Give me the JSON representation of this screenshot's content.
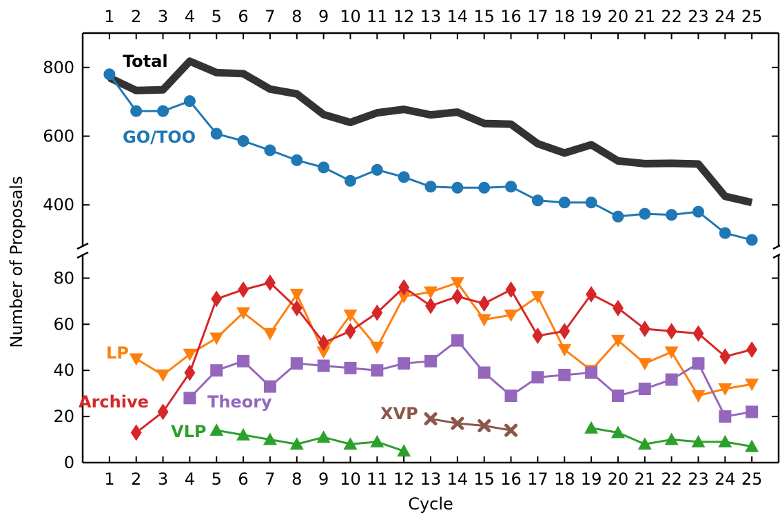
{
  "chart_data": {
    "type": "line",
    "xlabel": "Cycle",
    "ylabel": "Number of Proposals",
    "x": [
      1,
      2,
      3,
      4,
      5,
      6,
      7,
      8,
      9,
      10,
      11,
      12,
      13,
      14,
      15,
      16,
      17,
      18,
      19,
      20,
      21,
      22,
      23,
      24,
      25
    ],
    "x_ticks": [
      "1",
      "2",
      "3",
      "4",
      "5",
      "6",
      "7",
      "8",
      "9",
      "10",
      "11",
      "12",
      "13",
      "14",
      "15",
      "16",
      "17",
      "18",
      "19",
      "20",
      "21",
      "22",
      "23",
      "24",
      "25"
    ],
    "xlim": [
      0.0,
      26.0
    ],
    "broken_y_axis": true,
    "upper_panel": {
      "ylim": [
        280,
        900
      ],
      "yticks": [
        400,
        600,
        800
      ]
    },
    "lower_panel": {
      "ylim": [
        0,
        90
      ],
      "yticks": [
        0,
        20,
        40,
        60,
        80
      ]
    },
    "series": [
      {
        "name": "Total",
        "panel": "upper",
        "color": "#333333",
        "marker": "none",
        "values": [
          770,
          733,
          735,
          818,
          785,
          782,
          737,
          723,
          663,
          640,
          668,
          678,
          662,
          670,
          637,
          635,
          578,
          551,
          575,
          528,
          520,
          521,
          519,
          425,
          407
        ]
      },
      {
        "name": "GO/TOO",
        "panel": "upper",
        "color": "#1f77b4",
        "marker": "circle",
        "values": [
          780,
          673,
          673,
          702,
          607,
          586,
          559,
          530,
          509,
          470,
          502,
          481,
          453,
          450,
          450,
          453,
          413,
          407,
          407,
          366,
          374,
          371,
          380,
          318,
          298
        ]
      },
      {
        "name": "LP",
        "panel": "lower",
        "color": "#ff7f0e",
        "marker": "triangle-down",
        "values": [
          null,
          45,
          38,
          47,
          54,
          65,
          56,
          73,
          48,
          64,
          50,
          72,
          74,
          78,
          62,
          64,
          72,
          49,
          40,
          53,
          43,
          48,
          29,
          32,
          34
        ]
      },
      {
        "name": "Archive",
        "panel": "lower",
        "color": "#d62728",
        "marker": "diamond",
        "values": [
          null,
          13,
          22,
          39,
          71,
          75,
          78,
          67,
          52,
          57,
          65,
          76,
          68,
          72,
          69,
          75,
          55,
          57,
          73,
          67,
          58,
          57,
          56,
          46,
          49
        ]
      },
      {
        "name": "Theory",
        "panel": "lower",
        "color": "#9467bd",
        "marker": "square",
        "values": [
          null,
          null,
          null,
          28,
          40,
          44,
          33,
          43,
          42,
          41,
          40,
          43,
          44,
          53,
          39,
          29,
          37,
          38,
          39,
          29,
          32,
          36,
          43,
          20,
          22
        ]
      },
      {
        "name": "XVP",
        "panel": "lower",
        "color": "#8c564b",
        "marker": "x",
        "values": [
          null,
          null,
          null,
          null,
          null,
          null,
          null,
          null,
          null,
          null,
          null,
          null,
          19,
          17,
          16,
          14,
          null,
          null,
          null,
          null,
          null,
          null,
          null,
          null,
          null
        ]
      },
      {
        "name": "VLP",
        "panel": "lower",
        "color": "#2ca02c",
        "marker": "triangle-up",
        "values": [
          null,
          null,
          null,
          null,
          14,
          12,
          10,
          8,
          11,
          8,
          9,
          5,
          null,
          null,
          null,
          null,
          null,
          null,
          15,
          13,
          8,
          10,
          9,
          9,
          7
        ]
      }
    ]
  }
}
